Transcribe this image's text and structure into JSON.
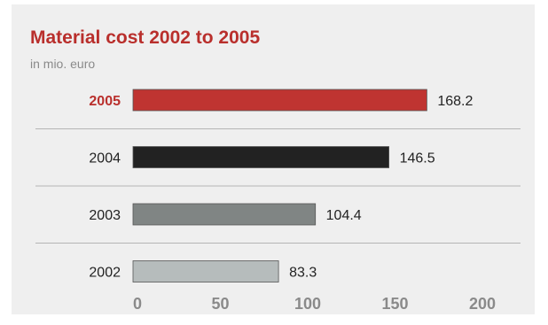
{
  "chart_data": {
    "type": "bar",
    "orientation": "horizontal",
    "title": "Material cost 2002 to 2005",
    "subtitle": "in mio. euro",
    "categories": [
      "2005",
      "2004",
      "2003",
      "2002"
    ],
    "values": [
      168.2,
      146.5,
      104.4,
      83.3
    ],
    "value_labels": [
      "168.2",
      "146.5",
      "104.4",
      "83.3"
    ],
    "highlight": "2005",
    "xlim": [
      0,
      200
    ],
    "xticks": [
      0,
      50,
      100,
      150,
      200
    ],
    "xtick_labels": [
      "0",
      "50",
      "100",
      "150",
      "200"
    ],
    "bar_colors": [
      "#bf3431",
      "#222222",
      "#808584",
      "#b6bcbc"
    ],
    "title_color": "#b92f2c",
    "grid": false,
    "legend": "none"
  }
}
